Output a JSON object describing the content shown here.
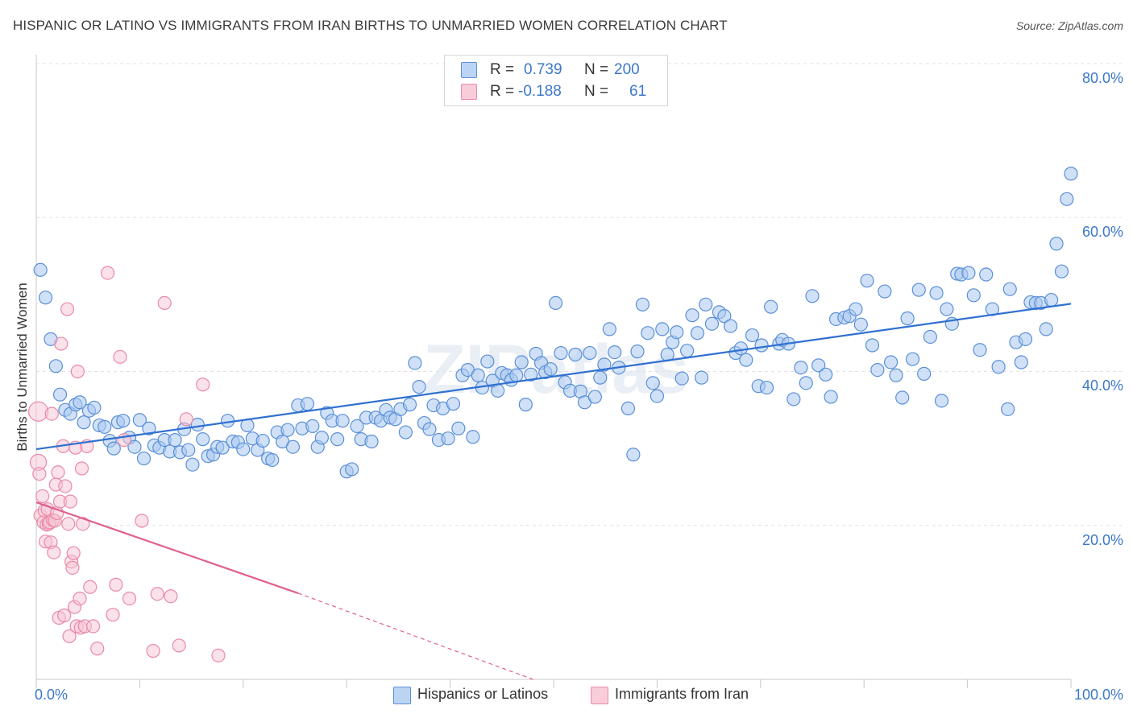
{
  "title": "HISPANIC OR LATINO VS IMMIGRANTS FROM IRAN BIRTHS TO UNMARRIED WOMEN CORRELATION CHART",
  "source": "Source: ZipAtlas.com",
  "watermark": "ZIPatlas",
  "legend": {
    "rows": [
      {
        "r_label": "R =",
        "r_value": "0.739",
        "n_label": "N =",
        "n_value": "200"
      },
      {
        "r_label": "R =",
        "r_value": "-0.188",
        "n_label": "N =",
        "n_value": "61"
      }
    ]
  },
  "bottom_legend": [
    {
      "label": "Hispanics or Latinos",
      "color": "#7fb0e8"
    },
    {
      "label": "Immigrants from Iran",
      "color": "#f2a0b8"
    }
  ],
  "colors": {
    "blue": "#3070d0",
    "blue_fill": "#a9c8f0",
    "pink": "#e0608c",
    "pink_fill": "#f7c3d3",
    "tick_text": "#3b78c9"
  },
  "chart_data": {
    "type": "scatter",
    "title": "HISPANIC OR LATINO VS IMMIGRANTS FROM IRAN BIRTHS TO UNMARRIED WOMEN CORRELATION CHART",
    "xlabel": "",
    "ylabel": "Births to Unmarried Women",
    "xlim": [
      0,
      100
    ],
    "ylim": [
      0,
      80
    ],
    "x_tick_labels": [
      "0.0%",
      "100.0%"
    ],
    "y_ticks": [
      20,
      40,
      60,
      80
    ],
    "y_tick_labels": [
      "20.0%",
      "40.0%",
      "60.0%",
      "80.0%"
    ],
    "grid": true,
    "legend_position": "top-center",
    "series": [
      {
        "name": "Hispanics or Latinos",
        "R": 0.739,
        "N": 200,
        "trend": {
          "x": [
            0,
            100
          ],
          "y": [
            29.9,
            48.8
          ]
        },
        "points": [
          [
            0.4,
            53.2
          ],
          [
            0.9,
            49.6
          ],
          [
            1.4,
            44.2
          ],
          [
            1.9,
            40.7
          ],
          [
            2.3,
            37.0
          ],
          [
            2.8,
            35.0
          ],
          [
            3.3,
            34.5
          ],
          [
            3.8,
            35.7
          ],
          [
            4.2,
            36.0
          ],
          [
            4.6,
            33.4
          ],
          [
            5.1,
            34.9
          ],
          [
            5.6,
            35.3
          ],
          [
            6.1,
            33.0
          ],
          [
            6.6,
            32.8
          ],
          [
            7.1,
            31.0
          ],
          [
            7.5,
            30.0
          ],
          [
            7.9,
            33.4
          ],
          [
            8.4,
            33.6
          ],
          [
            9.0,
            31.4
          ],
          [
            9.5,
            30.2
          ],
          [
            10.0,
            33.7
          ],
          [
            10.4,
            28.7
          ],
          [
            10.9,
            32.6
          ],
          [
            11.4,
            30.4
          ],
          [
            11.9,
            30.1
          ],
          [
            12.4,
            31.1
          ],
          [
            12.9,
            29.6
          ],
          [
            13.4,
            31.1
          ],
          [
            13.9,
            29.5
          ],
          [
            14.3,
            32.5
          ],
          [
            14.7,
            29.8
          ],
          [
            15.1,
            27.9
          ],
          [
            15.6,
            33.1
          ],
          [
            16.1,
            31.2
          ],
          [
            16.6,
            29.0
          ],
          [
            17.1,
            29.2
          ],
          [
            17.5,
            30.2
          ],
          [
            18.0,
            30.1
          ],
          [
            18.5,
            33.6
          ],
          [
            19.0,
            30.9
          ],
          [
            19.5,
            30.8
          ],
          [
            20.0,
            29.9
          ],
          [
            20.4,
            33.0
          ],
          [
            20.9,
            31.3
          ],
          [
            21.4,
            29.8
          ],
          [
            21.9,
            31.0
          ],
          [
            22.4,
            28.7
          ],
          [
            22.8,
            28.5
          ],
          [
            23.3,
            32.1
          ],
          [
            23.8,
            30.9
          ],
          [
            24.3,
            32.4
          ],
          [
            24.8,
            30.2
          ],
          [
            25.3,
            35.6
          ],
          [
            25.7,
            32.6
          ],
          [
            26.2,
            35.8
          ],
          [
            26.7,
            32.9
          ],
          [
            27.2,
            30.2
          ],
          [
            27.6,
            31.4
          ],
          [
            28.1,
            34.6
          ],
          [
            28.6,
            33.6
          ],
          [
            29.1,
            31.2
          ],
          [
            29.6,
            33.6
          ],
          [
            30.0,
            27.0
          ],
          [
            30.5,
            27.3
          ],
          [
            31.0,
            32.9
          ],
          [
            31.4,
            31.2
          ],
          [
            31.9,
            34.0
          ],
          [
            32.4,
            30.9
          ],
          [
            32.8,
            34.0
          ],
          [
            33.3,
            33.6
          ],
          [
            33.8,
            35.0
          ],
          [
            34.2,
            34.0
          ],
          [
            34.7,
            33.8
          ],
          [
            35.2,
            35.1
          ],
          [
            35.7,
            32.1
          ],
          [
            36.1,
            35.7
          ],
          [
            36.6,
            41.1
          ],
          [
            37.0,
            38.0
          ],
          [
            37.5,
            33.3
          ],
          [
            38.0,
            32.5
          ],
          [
            38.4,
            35.6
          ],
          [
            38.9,
            31.1
          ],
          [
            39.3,
            35.2
          ],
          [
            39.8,
            31.3
          ],
          [
            40.3,
            35.8
          ],
          [
            40.8,
            32.6
          ],
          [
            41.2,
            39.5
          ],
          [
            41.7,
            40.2
          ],
          [
            42.2,
            31.5
          ],
          [
            42.7,
            39.5
          ],
          [
            43.1,
            37.9
          ],
          [
            43.6,
            41.3
          ],
          [
            44.1,
            38.8
          ],
          [
            44.6,
            37.5
          ],
          [
            45.0,
            39.8
          ],
          [
            45.5,
            39.5
          ],
          [
            45.9,
            38.9
          ],
          [
            46.4,
            39.5
          ],
          [
            46.9,
            41.2
          ],
          [
            47.3,
            35.7
          ],
          [
            47.8,
            39.6
          ],
          [
            48.3,
            42.3
          ],
          [
            48.8,
            41.1
          ],
          [
            49.2,
            39.9
          ],
          [
            49.7,
            40.3
          ],
          [
            50.2,
            48.9
          ],
          [
            50.7,
            42.4
          ],
          [
            51.1,
            38.6
          ],
          [
            51.6,
            37.5
          ],
          [
            52.1,
            42.2
          ],
          [
            52.6,
            37.4
          ],
          [
            53.0,
            36.0
          ],
          [
            53.5,
            42.4
          ],
          [
            54.0,
            36.7
          ],
          [
            54.5,
            39.2
          ],
          [
            54.9,
            40.9
          ],
          [
            55.4,
            45.5
          ],
          [
            55.9,
            42.5
          ],
          [
            56.3,
            40.5
          ],
          [
            57.2,
            35.2
          ],
          [
            57.7,
            29.2
          ],
          [
            58.1,
            42.6
          ],
          [
            58.6,
            48.7
          ],
          [
            59.1,
            45.0
          ],
          [
            59.6,
            38.5
          ],
          [
            60.0,
            36.8
          ],
          [
            60.5,
            45.5
          ],
          [
            61.0,
            42.2
          ],
          [
            61.5,
            43.8
          ],
          [
            61.9,
            45.1
          ],
          [
            62.4,
            39.1
          ],
          [
            62.9,
            42.7
          ],
          [
            63.4,
            47.3
          ],
          [
            63.9,
            45.0
          ],
          [
            64.3,
            39.2
          ],
          [
            64.7,
            48.7
          ],
          [
            65.3,
            46.2
          ],
          [
            66.0,
            47.7
          ],
          [
            66.5,
            47.2
          ],
          [
            67.1,
            45.9
          ],
          [
            67.6,
            42.4
          ],
          [
            68.1,
            43.0
          ],
          [
            68.6,
            41.5
          ],
          [
            69.2,
            44.7
          ],
          [
            69.8,
            38.1
          ],
          [
            70.1,
            43.4
          ],
          [
            70.6,
            37.9
          ],
          [
            71.0,
            48.4
          ],
          [
            71.8,
            43.6
          ],
          [
            72.1,
            44.1
          ],
          [
            72.7,
            43.6
          ],
          [
            73.2,
            36.4
          ],
          [
            73.9,
            40.5
          ],
          [
            74.4,
            38.5
          ],
          [
            75.0,
            49.8
          ],
          [
            75.6,
            40.8
          ],
          [
            76.3,
            39.6
          ],
          [
            76.8,
            36.7
          ],
          [
            77.3,
            46.8
          ],
          [
            78.1,
            47.0
          ],
          [
            78.6,
            47.2
          ],
          [
            79.2,
            48.1
          ],
          [
            79.7,
            46.1
          ],
          [
            80.3,
            51.8
          ],
          [
            80.8,
            43.4
          ],
          [
            81.3,
            40.2
          ],
          [
            82.0,
            50.4
          ],
          [
            82.6,
            41.2
          ],
          [
            83.1,
            39.5
          ],
          [
            83.7,
            36.6
          ],
          [
            84.2,
            46.9
          ],
          [
            84.7,
            41.6
          ],
          [
            85.3,
            50.6
          ],
          [
            85.8,
            39.7
          ],
          [
            86.4,
            44.5
          ],
          [
            87.0,
            50.2
          ],
          [
            87.5,
            36.2
          ],
          [
            88.0,
            48.1
          ],
          [
            88.5,
            46.2
          ],
          [
            89.0,
            52.7
          ],
          [
            89.4,
            52.6
          ],
          [
            90.1,
            52.8
          ],
          [
            90.6,
            49.9
          ],
          [
            91.2,
            42.8
          ],
          [
            91.8,
            52.6
          ],
          [
            92.4,
            48.1
          ],
          [
            93.0,
            40.6
          ],
          [
            93.9,
            35.1
          ],
          [
            94.1,
            50.7
          ],
          [
            94.7,
            43.8
          ],
          [
            95.2,
            41.2
          ],
          [
            95.6,
            44.2
          ],
          [
            96.1,
            49.0
          ],
          [
            96.6,
            48.9
          ],
          [
            97.1,
            48.9
          ],
          [
            97.6,
            45.5
          ],
          [
            98.1,
            49.3
          ],
          [
            98.6,
            56.6
          ],
          [
            99.1,
            53.0
          ],
          [
            99.6,
            62.4
          ],
          [
            100.0,
            65.7
          ]
        ]
      },
      {
        "name": "Immigrants from Iran",
        "R": -0.188,
        "N": 61,
        "trend": {
          "x": [
            0,
            25.3
          ],
          "y": [
            23.0,
            11.2
          ],
          "dash_x": [
            25.3,
            48
          ],
          "dash_y": [
            11.2,
            0
          ]
        },
        "points": [
          [
            0.2,
            34.8
          ],
          [
            0.2,
            28.2
          ],
          [
            0.3,
            26.7
          ],
          [
            0.4,
            21.3
          ],
          [
            0.6,
            23.8
          ],
          [
            0.7,
            20.4
          ],
          [
            0.8,
            21.9
          ],
          [
            0.9,
            17.9
          ],
          [
            1.0,
            20.1
          ],
          [
            1.1,
            22.1
          ],
          [
            1.2,
            20.2
          ],
          [
            1.3,
            20.4
          ],
          [
            1.4,
            17.8
          ],
          [
            1.5,
            34.5
          ],
          [
            1.6,
            20.7
          ],
          [
            1.7,
            16.5
          ],
          [
            1.8,
            20.6
          ],
          [
            1.9,
            25.3
          ],
          [
            2.0,
            21.6
          ],
          [
            2.1,
            26.9
          ],
          [
            2.2,
            8.0
          ],
          [
            2.3,
            23.1
          ],
          [
            2.4,
            43.6
          ],
          [
            2.6,
            30.3
          ],
          [
            2.7,
            8.3
          ],
          [
            2.8,
            25.1
          ],
          [
            3.0,
            48.1
          ],
          [
            3.1,
            20.2
          ],
          [
            3.2,
            5.6
          ],
          [
            3.3,
            23.1
          ],
          [
            3.4,
            15.3
          ],
          [
            3.5,
            14.5
          ],
          [
            3.6,
            16.4
          ],
          [
            3.7,
            9.4
          ],
          [
            3.8,
            30.1
          ],
          [
            3.9,
            6.9
          ],
          [
            4.0,
            40.0
          ],
          [
            4.2,
            10.5
          ],
          [
            4.3,
            6.7
          ],
          [
            4.4,
            27.4
          ],
          [
            4.5,
            20.2
          ],
          [
            4.7,
            6.9
          ],
          [
            4.9,
            30.3
          ],
          [
            5.2,
            12.0
          ],
          [
            5.5,
            6.9
          ],
          [
            5.9,
            4.0
          ],
          [
            6.9,
            52.8
          ],
          [
            7.4,
            8.4
          ],
          [
            7.7,
            12.3
          ],
          [
            8.1,
            41.9
          ],
          [
            8.5,
            31.1
          ],
          [
            9.0,
            10.5
          ],
          [
            10.2,
            20.6
          ],
          [
            11.3,
            3.7
          ],
          [
            11.7,
            11.1
          ],
          [
            12.4,
            48.9
          ],
          [
            13.0,
            10.8
          ],
          [
            13.8,
            4.4
          ],
          [
            14.5,
            33.8
          ],
          [
            16.1,
            38.3
          ],
          [
            17.6,
            3.1
          ]
        ]
      }
    ]
  }
}
